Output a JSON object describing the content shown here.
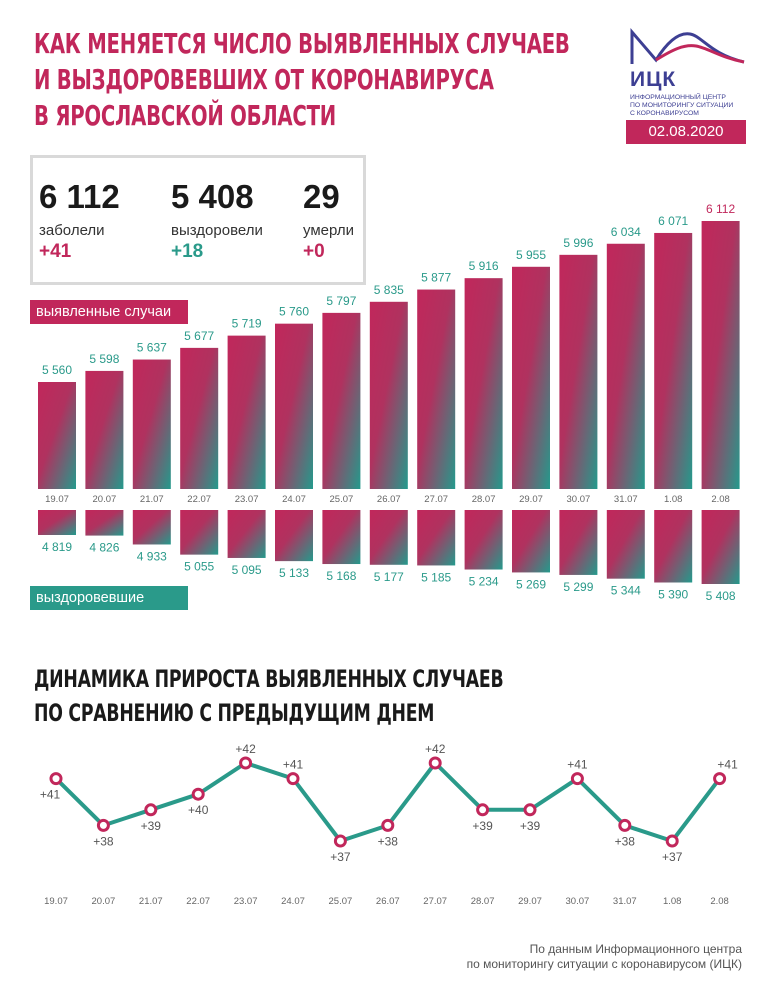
{
  "header": {
    "title_lines": [
      "КАК МЕНЯЕТСЯ ЧИСЛО ВЫЯВЛЕННЫХ СЛУЧАЕВ",
      "И ВЫЗДОРОВЕВШИХ ОТ КОРОНАВИРУСА",
      "В ЯРОСЛАВСКОЙ ОБЛАСТИ"
    ],
    "date": "02.08.2020"
  },
  "logo": {
    "name": "ИЦК",
    "subtitle_lines": [
      "ИНФОРМАЦИОННЫЙ ЦЕНТР",
      "ПО МОНИТОРИНГУ СИТУАЦИИ",
      "С КОРОНАВИРУСОМ"
    ]
  },
  "stats": [
    {
      "value": "6 112",
      "label": "заболели",
      "delta": "+41",
      "delta_color": "#c1275b"
    },
    {
      "value": "5 408",
      "label": "выздоровели",
      "delta": "+18",
      "delta_color": "#2a9a8a"
    },
    {
      "value": "29",
      "label": "умерли",
      "delta": "+0",
      "delta_color": "#c1275b"
    }
  ],
  "labels": {
    "cases": "выявленные случаи",
    "recovered": "выздоровевшие"
  },
  "subtitle_lines": [
    "ДИНАМИКА ПРИРОСТА ВЫЯВЛЕННЫХ СЛУЧАЕВ",
    "ПО СРАВНЕНИЮ С ПРЕДЫДУЩИМ ДНЕМ"
  ],
  "source_lines": [
    "По данным Информационного центра",
    "по мониторингу ситуации с коронавирусом (ИЦК)"
  ],
  "colors": {
    "brand_pink": "#c1275b",
    "brand_teal": "#2a9a8a",
    "logo_blue": "#3d3f93"
  },
  "chart_data": [
    {
      "type": "bar",
      "categories": [
        "19.07",
        "20.07",
        "21.07",
        "22.07",
        "23.07",
        "24.07",
        "25.07",
        "26.07",
        "27.07",
        "28.07",
        "29.07",
        "30.07",
        "31.07",
        "1.08",
        "2.08"
      ],
      "series": [
        {
          "name": "выявленные случаи",
          "values": [
            5560,
            5598,
            5637,
            5677,
            5719,
            5760,
            5797,
            5835,
            5877,
            5916,
            5955,
            5996,
            6034,
            6071,
            6112
          ],
          "labels": [
            "5 560",
            "5 598",
            "5 637",
            "5 677",
            "5 719",
            "5 760",
            "5 797",
            "5 835",
            "5 877",
            "5 916",
            "5 955",
            "5 996",
            "6 034",
            "6 071",
            "6 112"
          ]
        },
        {
          "name": "выздоровевшие",
          "values": [
            4819,
            4826,
            4933,
            5055,
            5095,
            5133,
            5168,
            5177,
            5185,
            5234,
            5269,
            5299,
            5344,
            5390,
            5408
          ],
          "labels": [
            "4 819",
            "4 826",
            "4 933",
            "5 055",
            "5 095",
            "5 133",
            "5 168",
            "5 177",
            "5 185",
            "5 234",
            "5 269",
            "5 299",
            "5 344",
            "5 390",
            "5 408"
          ]
        }
      ]
    },
    {
      "type": "line",
      "title": "ДИНАМИКА ПРИРОСТА ВЫЯВЛЕННЫХ СЛУЧАЕВ ПО СРАВНЕНИЮ С ПРЕДЫДУЩИМ ДНЕМ",
      "categories": [
        "19.07",
        "20.07",
        "21.07",
        "22.07",
        "23.07",
        "24.07",
        "25.07",
        "26.07",
        "27.07",
        "28.07",
        "29.07",
        "30.07",
        "31.07",
        "1.08",
        "2.08"
      ],
      "values": [
        41,
        38,
        39,
        40,
        42,
        41,
        37,
        38,
        42,
        39,
        39,
        41,
        38,
        37,
        41
      ],
      "labels": [
        "+41",
        "+38",
        "+39",
        "+40",
        "+42",
        "+41",
        "+37",
        "+38",
        "+42",
        "+39",
        "+39",
        "+41",
        "+38",
        "+37",
        "+41"
      ],
      "ylim": [
        37,
        42
      ]
    }
  ]
}
